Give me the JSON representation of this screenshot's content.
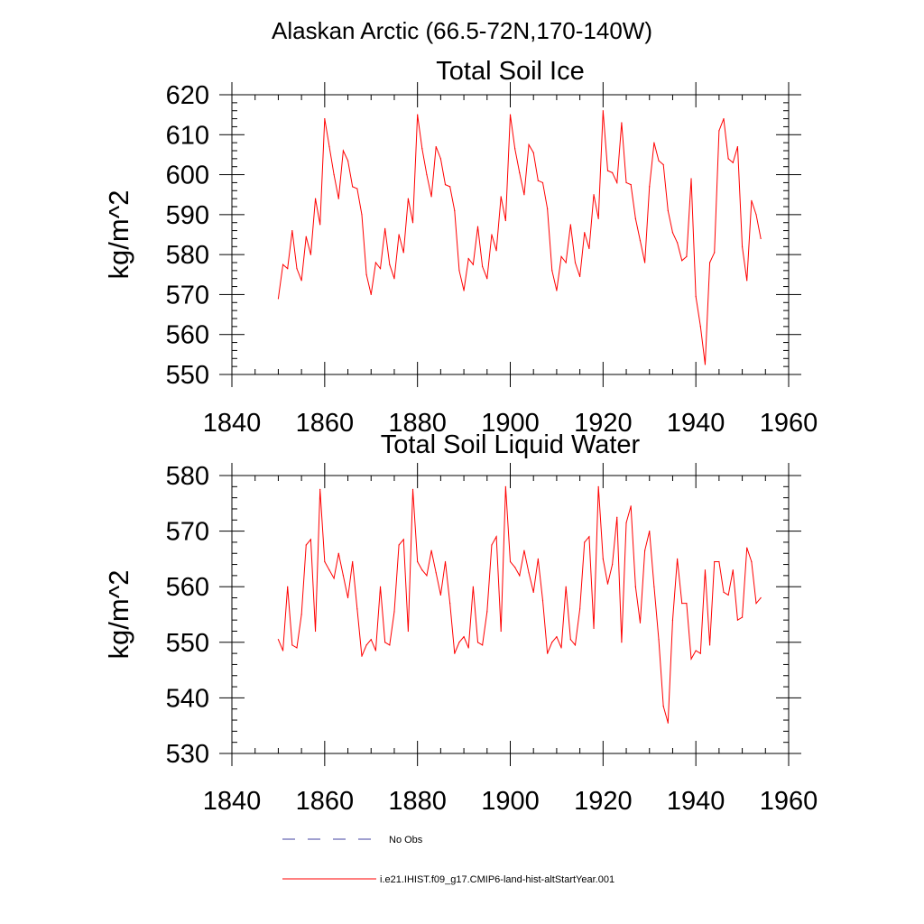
{
  "figure": {
    "title": "Alaskan Arctic (66.5-72N,170-140W)"
  },
  "colors": {
    "model_line": "#ff0000",
    "obs_line": "#4040a0",
    "axis": "#000000"
  },
  "legend": {
    "items": [
      {
        "label": "No Obs",
        "style": "dashed",
        "color": "#4040a0"
      },
      {
        "label": "i.e21.IHIST.f09_g17.CMIP6-land-hist-altStartYear.001",
        "style": "solid",
        "color": "#ff0000"
      }
    ]
  },
  "chart_data": [
    {
      "type": "line",
      "title": "Total Soil Ice",
      "xlabel": "",
      "ylabel": "kg/m^2",
      "xlim": [
        1840,
        1960
      ],
      "ylim": [
        550,
        620
      ],
      "xticks": [
        1840,
        1860,
        1880,
        1900,
        1920,
        1940,
        1960
      ],
      "yticks": [
        550,
        560,
        570,
        580,
        590,
        600,
        610,
        620
      ],
      "grid": false,
      "series": [
        {
          "name": "i.e21.IHIST.f09_g17.CMIP6-land-hist-altStartYear.001",
          "color": "#ff0000",
          "x": [
            1850,
            1851,
            1852,
            1853,
            1854,
            1855,
            1856,
            1857,
            1858,
            1859,
            1860,
            1861,
            1862,
            1863,
            1864,
            1865,
            1866,
            1867,
            1868,
            1869,
            1870,
            1871,
            1872,
            1873,
            1874,
            1875,
            1876,
            1877,
            1878,
            1879,
            1880,
            1881,
            1882,
            1883,
            1884,
            1885,
            1886,
            1887,
            1888,
            1889,
            1890,
            1891,
            1892,
            1893,
            1894,
            1895,
            1896,
            1897,
            1898,
            1899,
            1900,
            1901,
            1902,
            1903,
            1904,
            1905,
            1906,
            1907,
            1908,
            1909,
            1910,
            1911,
            1912,
            1913,
            1914,
            1915,
            1916,
            1917,
            1918,
            1919,
            1920,
            1921,
            1922,
            1923,
            1924,
            1925,
            1926,
            1927,
            1928,
            1929,
            1930,
            1931,
            1932,
            1933,
            1934,
            1935,
            1936,
            1937,
            1938,
            1939,
            1940,
            1941,
            1942,
            1943,
            1944,
            1945,
            1946,
            1947,
            1948,
            1949,
            1950,
            1951,
            1952,
            1953,
            1954
          ],
          "values": [
            569,
            577.5,
            576.5,
            586,
            576.5,
            573.5,
            584.5,
            580,
            594,
            587.5,
            614,
            607,
            600,
            594,
            606,
            603.5,
            597,
            596.5,
            590,
            575,
            570,
            578,
            576.5,
            586.5,
            577.5,
            574,
            585,
            580.5,
            594,
            588,
            615,
            606.5,
            600,
            594.5,
            607,
            604,
            597.5,
            597,
            591,
            576,
            571,
            579,
            577.5,
            587,
            577,
            574,
            585,
            581,
            594.5,
            588.5,
            615,
            606.5,
            600.5,
            595,
            607.5,
            605.5,
            598.5,
            598,
            591.5,
            576,
            571,
            579.5,
            578,
            587.5,
            578,
            574.5,
            585.5,
            581.5,
            595,
            589,
            616,
            601,
            600.5,
            598,
            613,
            598,
            597.5,
            589,
            583.5,
            578,
            597,
            608,
            603.5,
            602.5,
            591,
            585.5,
            583,
            578.5,
            579.5,
            599,
            569.5,
            562,
            552.5,
            578,
            580.5,
            611,
            614,
            604,
            603,
            607,
            582,
            573.5,
            593.5,
            590,
            584
          ]
        }
      ]
    },
    {
      "type": "line",
      "title": "Total Soil Liquid Water",
      "xlabel": "",
      "ylabel": "kg/m^2",
      "xlim": [
        1840,
        1960
      ],
      "ylim": [
        530,
        580
      ],
      "xticks": [
        1840,
        1860,
        1880,
        1900,
        1920,
        1940,
        1960
      ],
      "yticks": [
        530,
        540,
        550,
        560,
        570,
        580
      ],
      "grid": false,
      "series": [
        {
          "name": "i.e21.IHIST.f09_g17.CMIP6-land-hist-altStartYear.001",
          "color": "#ff0000",
          "x": [
            1850,
            1851,
            1852,
            1853,
            1854,
            1855,
            1856,
            1857,
            1858,
            1859,
            1860,
            1861,
            1862,
            1863,
            1864,
            1865,
            1866,
            1867,
            1868,
            1869,
            1870,
            1871,
            1872,
            1873,
            1874,
            1875,
            1876,
            1877,
            1878,
            1879,
            1880,
            1881,
            1882,
            1883,
            1884,
            1885,
            1886,
            1887,
            1888,
            1889,
            1890,
            1891,
            1892,
            1893,
            1894,
            1895,
            1896,
            1897,
            1898,
            1899,
            1900,
            1901,
            1902,
            1903,
            1904,
            1905,
            1906,
            1907,
            1908,
            1909,
            1910,
            1911,
            1912,
            1913,
            1914,
            1915,
            1916,
            1917,
            1918,
            1919,
            1920,
            1921,
            1922,
            1923,
            1924,
            1925,
            1926,
            1927,
            1928,
            1929,
            1930,
            1931,
            1932,
            1933,
            1934,
            1935,
            1936,
            1937,
            1938,
            1939,
            1940,
            1941,
            1942,
            1943,
            1944,
            1945,
            1946,
            1947,
            1948,
            1949,
            1950,
            1951,
            1952,
            1953,
            1954
          ],
          "values": [
            550.5,
            548.5,
            560,
            549.5,
            549,
            555,
            567.5,
            568.5,
            552,
            577.5,
            564.5,
            563,
            561.5,
            566,
            562,
            558,
            564.5,
            556,
            547.5,
            549.5,
            550.5,
            548.5,
            560,
            550,
            549.5,
            555.5,
            567.5,
            568.5,
            552,
            577.5,
            564.5,
            563,
            562,
            566.5,
            562.5,
            558.5,
            564.5,
            557,
            548,
            550,
            551,
            549,
            560,
            550,
            549.5,
            555.5,
            567.5,
            569,
            552,
            578,
            564.5,
            563.5,
            562,
            566.5,
            562.5,
            559,
            565,
            557.5,
            548,
            550,
            551,
            549,
            560,
            550.5,
            549.5,
            556,
            568,
            569,
            552.5,
            578,
            565,
            560.5,
            564,
            572.5,
            550,
            571.5,
            574.5,
            560,
            553.5,
            566.5,
            570,
            560,
            550.5,
            538.5,
            535.5,
            554,
            565,
            557,
            557,
            547,
            548.5,
            548,
            563,
            549.5,
            564.5,
            564.5,
            559,
            558.5,
            563,
            554,
            554.5,
            567,
            564.5,
            557,
            558
          ]
        }
      ]
    }
  ]
}
